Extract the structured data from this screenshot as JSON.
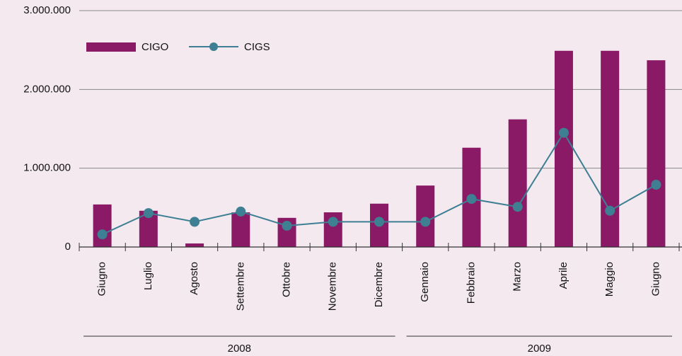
{
  "chart_data": {
    "type": "bar-line",
    "categories": [
      "Giugno",
      "Luglio",
      "Agosto",
      "Settembre",
      "Ottobre",
      "Novembre",
      "Dicembre",
      "Gennaio",
      "Febbraio",
      "Marzo",
      "Aprile",
      "Maggio",
      "Giugno"
    ],
    "groups": [
      {
        "label": "2008",
        "span": 7
      },
      {
        "label": "2009",
        "span": 6
      }
    ],
    "series": [
      {
        "name": "CIGO",
        "type": "bar",
        "color": "#8b1a66",
        "values": [
          540000,
          460000,
          45000,
          440000,
          370000,
          440000,
          550000,
          780000,
          1260000,
          1620000,
          2490000,
          2490000,
          2370000
        ]
      },
      {
        "name": "CIGS",
        "type": "line",
        "color": "#3e7f93",
        "values": [
          160000,
          430000,
          320000,
          450000,
          270000,
          320000,
          320000,
          320000,
          610000,
          510000,
          1450000,
          460000,
          790000
        ]
      }
    ],
    "ylim": [
      0,
      3000000
    ],
    "yticks": [
      0,
      {
        "value": 1000000,
        "label": "1.000.000"
      },
      {
        "value": 2000000,
        "label": "2.000.000"
      },
      {
        "value": 3000000,
        "label": "3.000.000"
      }
    ],
    "grid": true
  }
}
